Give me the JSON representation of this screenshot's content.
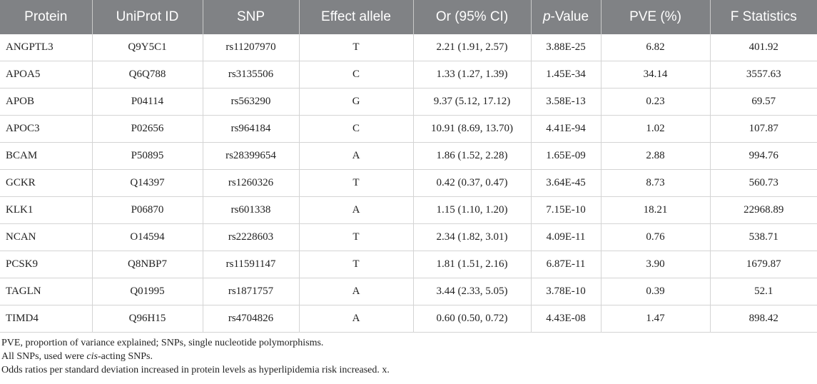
{
  "table": {
    "headers": {
      "protein": "Protein",
      "uniprot": "UniProt ID",
      "snp": "SNP",
      "effect_allele": "Effect allele",
      "or_ci": "Or (95% CI)",
      "pvalue_prefix": "p",
      "pvalue_suffix": "-Value",
      "pve": "PVE (%)",
      "f_stat": "F Statistics"
    },
    "rows": [
      {
        "protein": "ANGPTL3",
        "uniprot": "Q9Y5C1",
        "snp": "rs11207970",
        "allele": "T",
        "or_ci": "2.21 (1.91, 2.57)",
        "pvalue": "3.88E-25",
        "pve": "6.82",
        "f_stat": "401.92"
      },
      {
        "protein": "APOA5",
        "uniprot": "Q6Q788",
        "snp": "rs3135506",
        "allele": "C",
        "or_ci": "1.33 (1.27, 1.39)",
        "pvalue": "1.45E-34",
        "pve": "34.14",
        "f_stat": "3557.63"
      },
      {
        "protein": "APOB",
        "uniprot": "P04114",
        "snp": "rs563290",
        "allele": "G",
        "or_ci": "9.37 (5.12, 17.12)",
        "pvalue": "3.58E-13",
        "pve": "0.23",
        "f_stat": "69.57"
      },
      {
        "protein": "APOC3",
        "uniprot": "P02656",
        "snp": "rs964184",
        "allele": "C",
        "or_ci": "10.91 (8.69, 13.70)",
        "pvalue": "4.41E-94",
        "pve": "1.02",
        "f_stat": "107.87"
      },
      {
        "protein": "BCAM",
        "uniprot": "P50895",
        "snp": "rs28399654",
        "allele": "A",
        "or_ci": "1.86 (1.52, 2.28)",
        "pvalue": "1.65E-09",
        "pve": "2.88",
        "f_stat": "994.76"
      },
      {
        "protein": "GCKR",
        "uniprot": "Q14397",
        "snp": "rs1260326",
        "allele": "T",
        "or_ci": "0.42 (0.37, 0.47)",
        "pvalue": "3.64E-45",
        "pve": "8.73",
        "f_stat": "560.73"
      },
      {
        "protein": "KLK1",
        "uniprot": "P06870",
        "snp": "rs601338",
        "allele": "A",
        "or_ci": "1.15 (1.10, 1.20)",
        "pvalue": "7.15E-10",
        "pve": "18.21",
        "f_stat": "22968.89"
      },
      {
        "protein": "NCAN",
        "uniprot": "O14594",
        "snp": "rs2228603",
        "allele": "T",
        "or_ci": "2.34 (1.82, 3.01)",
        "pvalue": "4.09E-11",
        "pve": "0.76",
        "f_stat": "538.71"
      },
      {
        "protein": "PCSK9",
        "uniprot": "Q8NBP7",
        "snp": "rs11591147",
        "allele": "T",
        "or_ci": "1.81 (1.51, 2.16)",
        "pvalue": "6.87E-11",
        "pve": "3.90",
        "f_stat": "1679.87"
      },
      {
        "protein": "TAGLN",
        "uniprot": "Q01995",
        "snp": "rs1871757",
        "allele": "A",
        "or_ci": "3.44 (2.33, 5.05)",
        "pvalue": "3.78E-10",
        "pve": "0.39",
        "f_stat": "52.1"
      },
      {
        "protein": "TIMD4",
        "uniprot": "Q96H15",
        "snp": "rs4704826",
        "allele": "A",
        "or_ci": "0.60 (0.50, 0.72)",
        "pvalue": "4.43E-08",
        "pve": "1.47",
        "f_stat": "898.42"
      }
    ]
  },
  "notes": {
    "line1": "PVE, proportion of variance explained; SNPs, single nucleotide polymorphisms.",
    "line2_prefix": "All SNPs, used were ",
    "line2_italic": "cis",
    "line2_suffix": "-acting SNPs.",
    "line3": "Odds ratios per standard deviation increased in protein levels as hyperlipidemia risk increased. x."
  }
}
